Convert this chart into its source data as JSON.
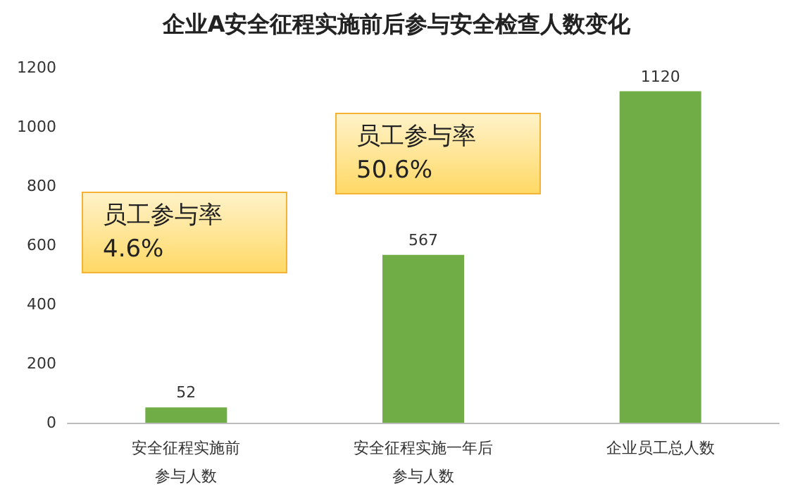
{
  "chart_data": {
    "type": "bar",
    "title": "企业A安全征程实施前后参与安全检查人数变化",
    "categories": [
      "安全征程实施前参与人数",
      "安全征程实施一年后参与人数",
      "企业员工总人数"
    ],
    "values": [
      52,
      567,
      1120
    ],
    "color": "#70ad47",
    "ylim": [
      0,
      1200
    ],
    "yticks": [
      0,
      200,
      400,
      600,
      800,
      {
        "value": 1000,
        "label": "1000"
      },
      {
        "value": 1200,
        "label": "1200"
      }
    ],
    "grid": false,
    "data_labels": true,
    "annotations": [
      "员工参与率\n4.6%",
      "员工参与率\n50.6%"
    ]
  }
}
